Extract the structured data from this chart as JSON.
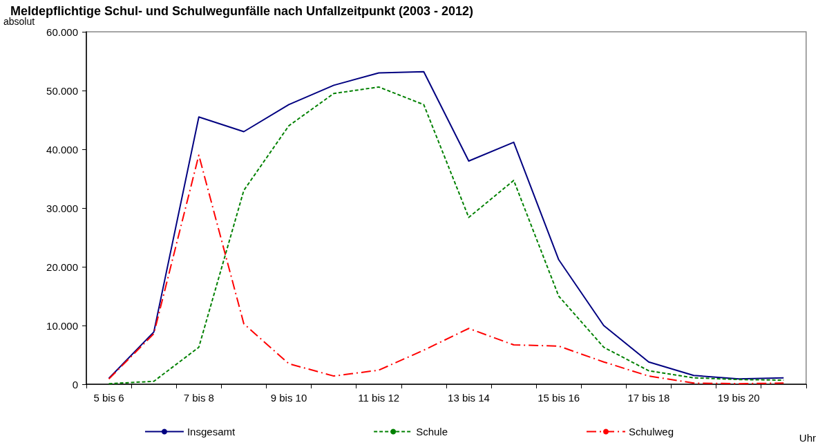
{
  "chart_data": {
    "type": "line",
    "title": "Meldepflichtige Schul- und Schulwegunfälle nach Unfallzeitpunkt (2003 - 2012)",
    "ylabel": "absolut",
    "xlabel": "Uhr",
    "categories": [
      "5 bis 6",
      null,
      "7 bis 8",
      null,
      "9 bis 10",
      null,
      "11 bis 12",
      null,
      "13 bis 14",
      null,
      "15 bis 16",
      null,
      "17 bis 18",
      null,
      "19 bis 20",
      null
    ],
    "series": [
      {
        "name": "Insgesamt",
        "color": "#000080",
        "line_style": "solid",
        "values": [
          1000,
          8900,
          45500,
          43000,
          47600,
          50900,
          53000,
          53200,
          38000,
          41200,
          21200,
          10000,
          3800,
          1500,
          900,
          1100
        ]
      },
      {
        "name": "Schule",
        "color": "#008000",
        "line_style": "dashed",
        "values": [
          100,
          500,
          6300,
          33000,
          44000,
          49500,
          50600,
          47600,
          28400,
          34700,
          15000,
          6300,
          2300,
          1100,
          800,
          700
        ]
      },
      {
        "name": "Schulweg",
        "color": "#ff0000",
        "line_style": "dashdot",
        "values": [
          900,
          8600,
          39000,
          10300,
          3500,
          1400,
          2400,
          5800,
          9500,
          6700,
          6500,
          3800,
          1400,
          200,
          100,
          200
        ]
      }
    ],
    "ylim": [
      0,
      60000
    ],
    "yticks": [
      {
        "value": 0,
        "label": "0"
      },
      {
        "value": 10000,
        "label": "10.000"
      },
      {
        "value": 20000,
        "label": "20.000"
      },
      {
        "value": 30000,
        "label": "30.000"
      },
      {
        "value": 40000,
        "label": "40.000"
      },
      {
        "value": 50000,
        "label": "50.000"
      },
      {
        "value": 60000,
        "label": "60.000"
      }
    ],
    "grid": false,
    "legend": "bottom",
    "marker": "none"
  }
}
